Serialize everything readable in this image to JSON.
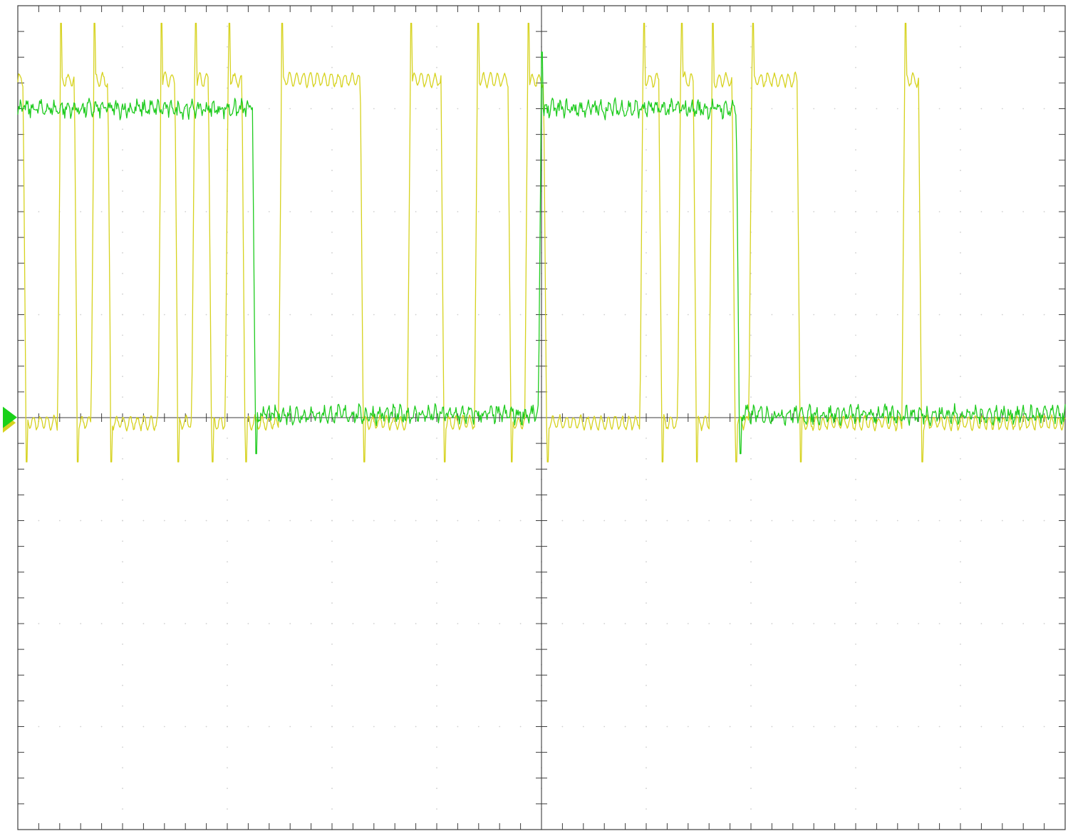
{
  "chart_data": {
    "type": "line",
    "x_divisions": 10,
    "y_divisions": 8,
    "x_range": [
      0,
      100
    ],
    "y_range": [
      -4,
      4
    ],
    "grid": "dotted",
    "colors": {
      "ch1": "#d6d21e",
      "ch2": "#1ecb1e",
      "marker_ch1": "#d6d21e",
      "marker_ch2": "#19d119"
    },
    "reference_level": 0,
    "series": [
      {
        "color": "#d6d21e",
        "low": -0.05,
        "high": 3.28,
        "transitions": [
          [
            0.0,
            1
          ],
          [
            0.5,
            0
          ],
          [
            3.8,
            1
          ],
          [
            5.4,
            0
          ],
          [
            7.0,
            1
          ],
          [
            8.6,
            0
          ],
          [
            13.4,
            1
          ],
          [
            15.0,
            0
          ],
          [
            16.6,
            1
          ],
          [
            18.2,
            0
          ],
          [
            19.8,
            1
          ],
          [
            21.4,
            0
          ],
          [
            24.9,
            1
          ],
          [
            32.7,
            0
          ],
          [
            37.2,
            1
          ],
          [
            40.4,
            0
          ],
          [
            43.6,
            1
          ],
          [
            46.8,
            0
          ],
          [
            48.4,
            1
          ],
          [
            50.2,
            0
          ],
          [
            59.4,
            1
          ],
          [
            61.2,
            0
          ],
          [
            63.0,
            1
          ],
          [
            64.5,
            0
          ],
          [
            66.0,
            1
          ],
          [
            68.2,
            0
          ],
          [
            69.8,
            1
          ],
          [
            74.4,
            0
          ],
          [
            84.4,
            1
          ],
          [
            86.0,
            0
          ]
        ]
      },
      {
        "color": "#1ecb1e",
        "low": 0.03,
        "high": 3.0,
        "transitions": [
          [
            0.0,
            1
          ],
          [
            22.4,
            0
          ],
          [
            49.7,
            1
          ],
          [
            68.6,
            0
          ]
        ]
      }
    ]
  }
}
